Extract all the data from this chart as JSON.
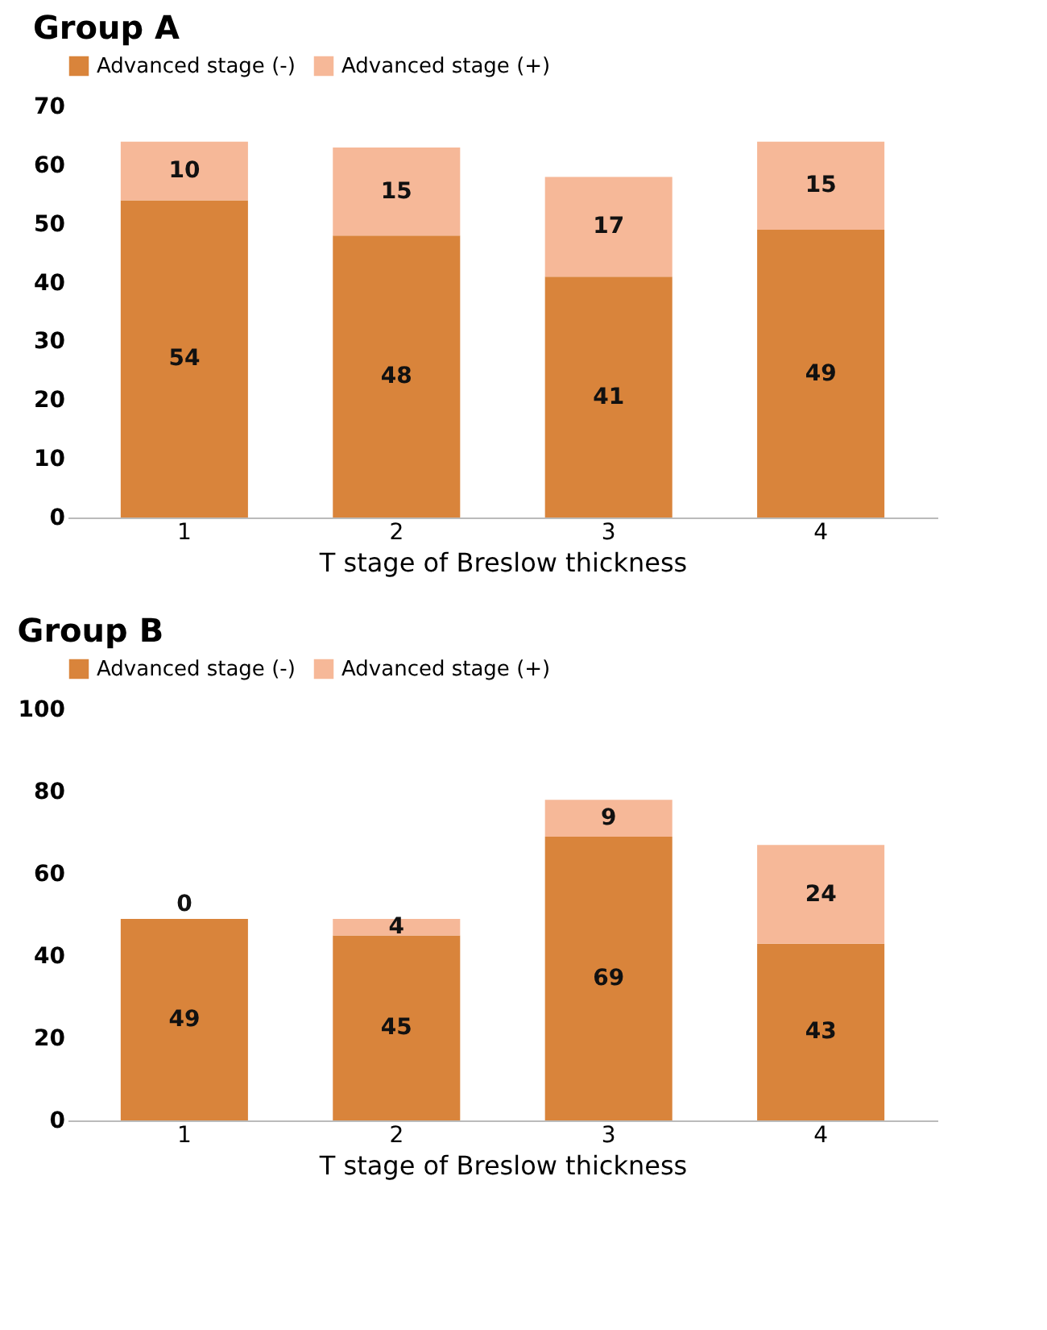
{
  "chart_data": [
    {
      "type": "bar",
      "title": "Group A",
      "xlabel": "T stage of Breslow thickness",
      "categories": [
        "1",
        "2",
        "3",
        "4"
      ],
      "stacked": true,
      "data_labels": true,
      "legend": "top",
      "grid": false,
      "ylim": [
        0,
        70
      ],
      "yticks": [
        0,
        10,
        20,
        30,
        40,
        50,
        60,
        70
      ],
      "series": [
        {
          "name": "Advanced stage (-)",
          "color": "#d9843b",
          "values": [
            54,
            48,
            41,
            49
          ]
        },
        {
          "name": "Advanced stage (+)",
          "color": "#f6b898",
          "values": [
            10,
            15,
            17,
            15
          ]
        }
      ]
    },
    {
      "type": "bar",
      "title": "Group B",
      "xlabel": "T stage of Breslow thickness",
      "categories": [
        "1",
        "2",
        "3",
        "4"
      ],
      "stacked": true,
      "data_labels": true,
      "legend": "top",
      "grid": false,
      "ylim": [
        0,
        100
      ],
      "yticks": [
        0,
        20,
        40,
        60,
        80,
        100
      ],
      "series": [
        {
          "name": "Advanced stage (-)",
          "color": "#d9843b",
          "values": [
            49,
            45,
            69,
            43
          ]
        },
        {
          "name": "Advanced stage (+)",
          "color": "#f6b898",
          "values": [
            0,
            4,
            9,
            24
          ]
        }
      ]
    }
  ]
}
